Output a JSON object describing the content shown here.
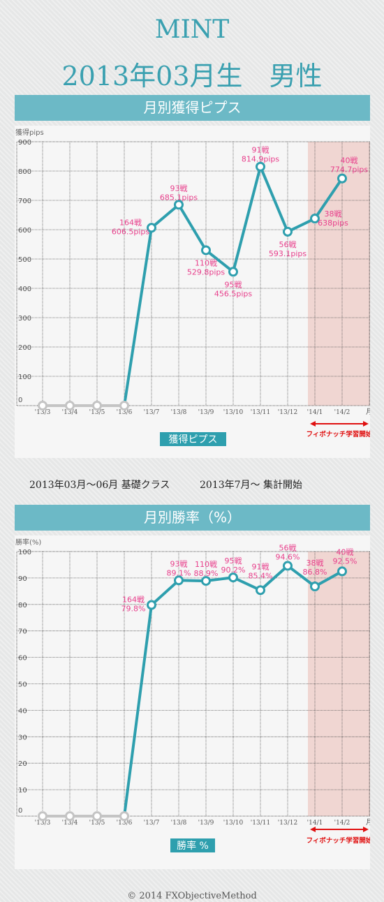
{
  "header": {
    "name": "MINT",
    "subtitle": "2013年03月生　男性"
  },
  "caption": {
    "left": "2013年03月～06月 基礎クラス",
    "right": "2013年7月～ 集計開始"
  },
  "footer": "© 2014 FXObjectiveMethod",
  "colors": {
    "accent": "#6cb9c6",
    "line": "#2e9fae",
    "zero_line": "#c4c4c4",
    "annotation": "#e8408c",
    "highlight": "#f0d6d2",
    "arrow": "#e01010"
  },
  "chart_data": [
    {
      "type": "line",
      "title": "月別獲得ピプス",
      "ylabel": "獲得pips",
      "legend": "獲得ピプス",
      "categories": [
        "'13/3",
        "'13/4",
        "'13/5",
        "'13/6",
        "'13/7",
        "'13/8",
        "'13/9",
        "'13/10",
        "'13/11",
        "'13/12",
        "'14/1",
        "'14/2"
      ],
      "x_unit": "月",
      "values": [
        0,
        0,
        0,
        0,
        606.5,
        685.1,
        529.8,
        456.5,
        814.9,
        593.1,
        638,
        774.7
      ],
      "y_ticks": [
        0,
        100,
        200,
        300,
        400,
        500,
        600,
        700,
        800,
        900
      ],
      "ylim": [
        0,
        900
      ],
      "grid": true,
      "annotations": [
        null,
        null,
        null,
        null,
        [
          "164戦",
          "606.5pips"
        ],
        [
          "93戦",
          "685.1pips"
        ],
        [
          "110戦",
          "529.8pips"
        ],
        [
          "95戦",
          "456.5pips"
        ],
        [
          "91戦",
          "814.9pips"
        ],
        [
          "56戦",
          "593.1pips"
        ],
        [
          "38戦",
          "638pips"
        ],
        [
          "40戦",
          "774.7pips"
        ]
      ],
      "highlight_label": "フィボナッチ学習開始"
    },
    {
      "type": "line",
      "title": "月別勝率（%）",
      "ylabel": "勝率(%)",
      "legend": "勝率 %",
      "categories": [
        "'13/3",
        "'13/4",
        "'13/5",
        "'13/6",
        "'13/7",
        "'13/8",
        "'13/9",
        "'13/10",
        "'13/11",
        "'13/12",
        "'14/1",
        "'14/2"
      ],
      "x_unit": "月",
      "values": [
        0,
        0,
        0,
        0,
        79.8,
        89.1,
        88.9,
        90.2,
        85.4,
        94.6,
        86.8,
        92.5
      ],
      "y_ticks": [
        0,
        10,
        20,
        30,
        40,
        50,
        60,
        70,
        80,
        90,
        100
      ],
      "ylim": [
        0,
        100
      ],
      "grid": true,
      "annotations": [
        null,
        null,
        null,
        null,
        [
          "164戦",
          "79.8%"
        ],
        [
          "93戦",
          "89.1%"
        ],
        [
          "110戦",
          "88.9%"
        ],
        [
          "95戦",
          "90.2%"
        ],
        [
          "91戦",
          "85.4%"
        ],
        [
          "56戦",
          "94.6%"
        ],
        [
          "38戦",
          "86.8%"
        ],
        [
          "40戦",
          "92.5%"
        ]
      ],
      "highlight_label": "フィボナッチ学習開始"
    }
  ]
}
